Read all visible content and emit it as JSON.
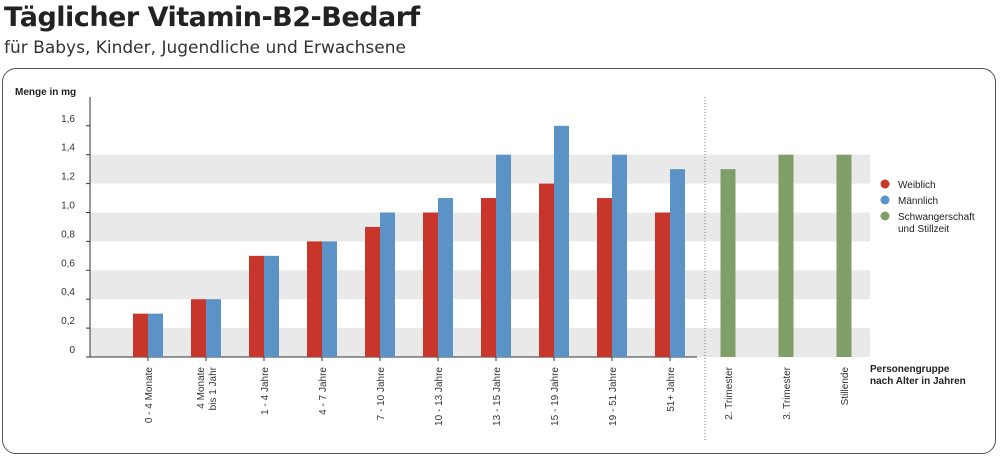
{
  "header": {
    "title": "Täglicher Vitamin-B2-Bedarf",
    "subtitle": "für Babys, Kinder, Jugendliche und Erwachsene"
  },
  "chart_data": {
    "type": "bar",
    "ylabel": "Menge in mg",
    "xlabel_lines": [
      "Personengruppe",
      "nach Alter in Jahren"
    ],
    "ylim": [
      0,
      1.8
    ],
    "yticks": [
      {
        "value": 0,
        "label": "0"
      },
      {
        "value": 0.2,
        "label": "0,2"
      },
      {
        "value": 0.4,
        "label": "0,4"
      },
      {
        "value": 0.6,
        "label": "0,6"
      },
      {
        "value": 0.8,
        "label": "0,8"
      },
      {
        "value": 1.0,
        "label": "1,0"
      },
      {
        "value": 1.2,
        "label": "1,2"
      },
      {
        "value": 1.4,
        "label": "1,4"
      },
      {
        "value": 1.6,
        "label": "1,6"
      }
    ],
    "grid": "alternating horizontal bands",
    "legend_position": "right",
    "categories": [
      {
        "label": [
          "0 - 4 Monate"
        ]
      },
      {
        "label": [
          "4 Monate",
          "bis 1 Jahr"
        ]
      },
      {
        "label": [
          "1 - 4 Jahre"
        ]
      },
      {
        "label": [
          "4 - 7 Jahre"
        ]
      },
      {
        "label": [
          "7 - 10 Jahre"
        ]
      },
      {
        "label": [
          "10 - 13 Jahre"
        ]
      },
      {
        "label": [
          "13 - 15 Jahre"
        ]
      },
      {
        "label": [
          "15 - 19 Jahre"
        ]
      },
      {
        "label": [
          "19 - 51 Jahre"
        ]
      },
      {
        "label": [
          "51+ Jahre"
        ]
      },
      {
        "label": [
          "2. Trimester"
        ]
      },
      {
        "label": [
          "3. Trimester"
        ]
      },
      {
        "label": [
          "Stillende"
        ]
      }
    ],
    "series": [
      {
        "name": "Weiblich",
        "color": "#c8362b",
        "values": [
          0.3,
          0.4,
          0.7,
          0.8,
          0.9,
          1.0,
          1.1,
          1.2,
          1.1,
          1.0,
          null,
          null,
          null
        ]
      },
      {
        "name": "Männlich",
        "color": "#5b93c6",
        "values": [
          0.3,
          0.4,
          0.7,
          0.8,
          1.0,
          1.1,
          1.4,
          1.6,
          1.4,
          1.3,
          null,
          null,
          null
        ]
      },
      {
        "name": "Schwangerschaft und Stillzeit",
        "legend_lines": [
          "Schwangerschaft",
          "und Stillzeit"
        ],
        "color": "#7f9e68",
        "values": [
          null,
          null,
          null,
          null,
          null,
          null,
          null,
          null,
          null,
          null,
          1.3,
          1.4,
          1.4
        ]
      }
    ],
    "separator_after_category": 10
  }
}
